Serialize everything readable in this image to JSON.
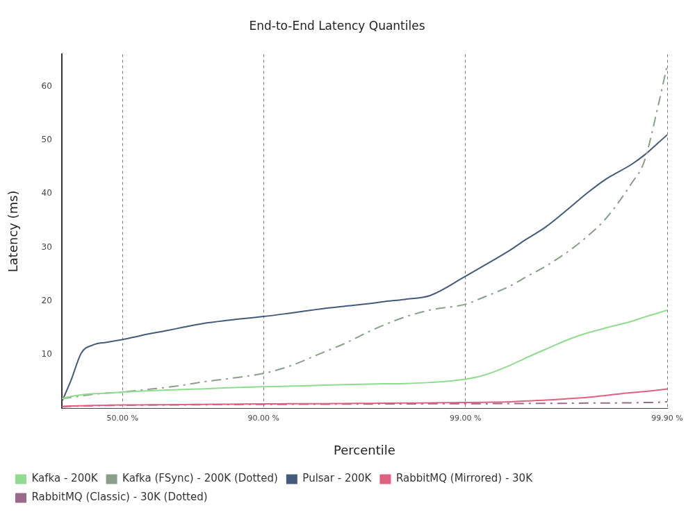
{
  "chart_data": {
    "type": "line",
    "title": "End-to-End Latency Quantiles",
    "x_label": "Percentile",
    "y_label": "Latency (ms)",
    "x": [
      0,
      10,
      20,
      30,
      40,
      50,
      60,
      70,
      75,
      80,
      85,
      90,
      92.5,
      95,
      96,
      97,
      97.5,
      98,
      98.5,
      99,
      99.2,
      99.4,
      99.5,
      99.6,
      99.7,
      99.75,
      99.8,
      99.85,
      99.87,
      99.89,
      99.9
    ],
    "series": [
      {
        "name": "Kafka - 200K",
        "color": "#8fdc8f",
        "line_style": "solid",
        "values": [
          1.8,
          2.2,
          2.5,
          2.7,
          2.8,
          3.0,
          3.2,
          3.4,
          3.5,
          3.6,
          3.8,
          4.0,
          4.1,
          4.3,
          4.4,
          4.5,
          4.55,
          4.6,
          4.8,
          5.4,
          6.2,
          8.0,
          9.4,
          11.0,
          13.0,
          14.0,
          15.0,
          16.2,
          17.0,
          17.8,
          18.3
        ]
      },
      {
        "name": "Kafka (FSync) - 200K (Dotted)",
        "color": "#8a9e8a",
        "line_style": "dashdot",
        "values": [
          1.8,
          2.0,
          2.3,
          2.6,
          2.8,
          3.0,
          3.4,
          3.9,
          4.3,
          4.9,
          5.5,
          6.5,
          7.8,
          10.5,
          12.0,
          14.3,
          15.6,
          17.0,
          18.3,
          19.4,
          20.8,
          22.8,
          24.5,
          26.5,
          29.6,
          32.0,
          35.5,
          42.0,
          46.0,
          57.0,
          64.0
        ]
      },
      {
        "name": "Pulsar - 200K",
        "color": "#435a7a",
        "line_style": "solid",
        "values": [
          1.2,
          5.2,
          10.3,
          11.8,
          12.3,
          12.8,
          13.6,
          14.5,
          15.1,
          15.8,
          16.4,
          17.1,
          17.7,
          18.6,
          19.0,
          19.5,
          19.9,
          20.3,
          21.0,
          24.6,
          26.7,
          29.5,
          31.5,
          33.8,
          37.6,
          40.1,
          42.8,
          45.5,
          47.2,
          49.6,
          51.0
        ]
      },
      {
        "name": "RabbitMQ (Mirrored) - 30K",
        "color": "#e0607f",
        "line_style": "solid",
        "values": [
          0.3,
          0.4,
          0.45,
          0.5,
          0.55,
          0.6,
          0.62,
          0.65,
          0.68,
          0.7,
          0.75,
          0.8,
          0.82,
          0.85,
          0.88,
          0.9,
          0.92,
          0.95,
          1.0,
          1.05,
          1.1,
          1.2,
          1.35,
          1.5,
          1.8,
          2.0,
          2.4,
          2.9,
          3.1,
          3.4,
          3.6
        ]
      },
      {
        "name": "RabbitMQ (Classic) - 30K (Dotted)",
        "color": "#9a6a8c",
        "line_style": "dashdot",
        "values": [
          0.3,
          0.35,
          0.4,
          0.45,
          0.5,
          0.55,
          0.58,
          0.6,
          0.62,
          0.65,
          0.68,
          0.7,
          0.72,
          0.75,
          0.76,
          0.78,
          0.8,
          0.8,
          0.82,
          0.85,
          0.85,
          0.87,
          0.88,
          0.9,
          0.92,
          0.95,
          0.97,
          1.0,
          1.05,
          1.1,
          1.2
        ]
      }
    ],
    "xlim": [
      0,
      99.9
    ],
    "xticks": [
      {
        "value": 50,
        "label": "50.00 %"
      },
      {
        "value": 90,
        "label": "90.00 %"
      },
      {
        "value": 99,
        "label": "99.00 %"
      },
      {
        "value": 99.9,
        "label": "99.90 %"
      }
    ],
    "ylim": [
      0,
      66
    ],
    "yticks": [
      10,
      20,
      30,
      40,
      50,
      60
    ],
    "grid": "x",
    "legend": "bottom"
  }
}
